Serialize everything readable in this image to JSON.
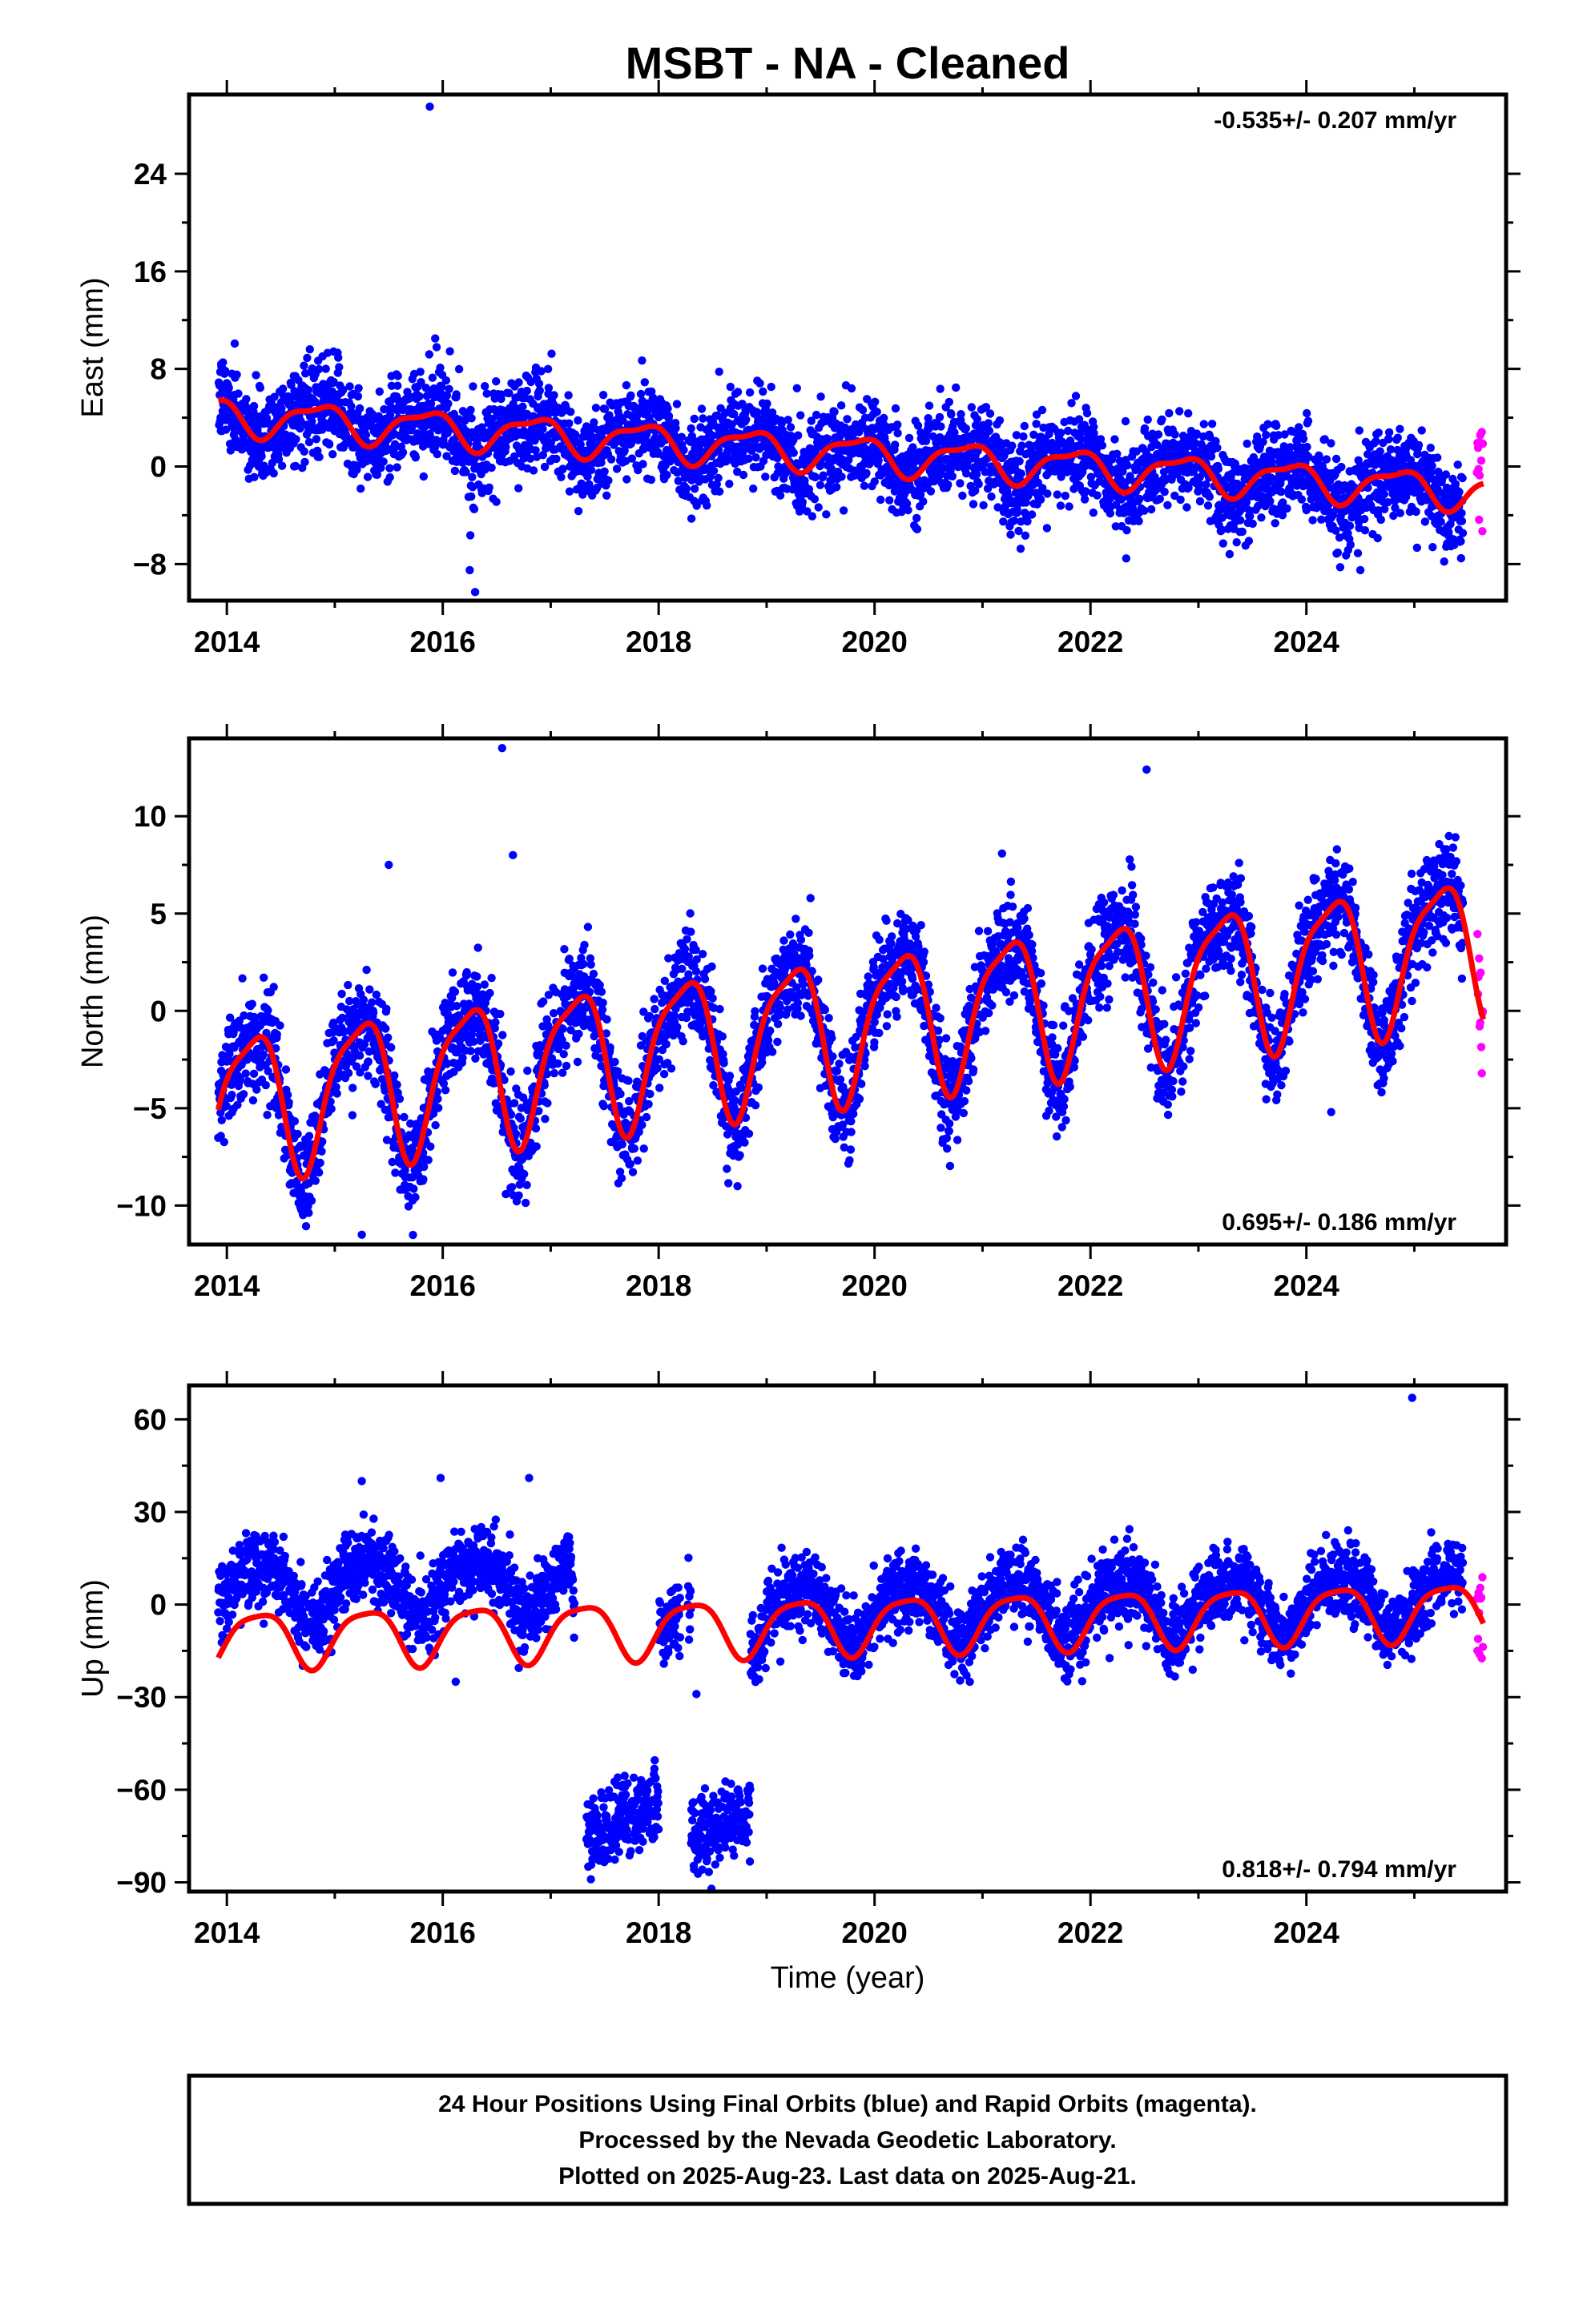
{
  "title": "MSBT  - NA - Cleaned",
  "xlabel": "Time (year)",
  "footer": [
    "24 Hour Positions Using Final Orbits (blue) and Rapid Orbits (magenta).",
    "Processed by the Nevada Geodetic Laboratory.",
    "Plotted on 2025-Aug-23. Last data on 2025-Aug-21."
  ],
  "colors": {
    "final": "#0000ff",
    "rapid": "#ff00ff",
    "model": "#ff0000"
  },
  "chart_data": [
    {
      "type": "scatter",
      "ylabel": "East (mm)",
      "rate": "-0.535+/- 0.207 mm/yr",
      "xlim": [
        2013.65,
        2025.85
      ],
      "ylim": [
        -11,
        30.5
      ],
      "xticks": [
        2014,
        2016,
        2018,
        2020,
        2022,
        2024
      ],
      "yticks": [
        -8,
        0,
        8,
        16,
        24
      ],
      "final_start": 2013.92,
      "final_end": 2025.45,
      "rapid_start": 2025.58,
      "rapid_end": 2025.64,
      "model": {
        "offset": 1.5,
        "trend": -0.535,
        "ref_year": 2019.0,
        "annual_amp": 1.4,
        "annual_phase": 2.6,
        "semiannual_amp": 0.5,
        "semiannual_phase": 1.0,
        "scatter_sd": 1.8
      },
      "outliers": [
        [
          2015.88,
          29.5
        ],
        [
          2015.93,
          10.5
        ],
        [
          2016.25,
          -8.5
        ],
        [
          2016.3,
          -10.3
        ],
        [
          2016.78,
          6.2
        ],
        [
          2024.5,
          -8.5
        ]
      ]
    },
    {
      "type": "scatter",
      "ylabel": "North (mm)",
      "rate": "0.695+/- 0.186 mm/yr",
      "xlim": [
        2013.65,
        2025.85
      ],
      "ylim": [
        -12,
        14
      ],
      "xticks": [
        2014,
        2016,
        2018,
        2020,
        2022,
        2024
      ],
      "yticks": [
        -10,
        -5,
        0,
        5,
        10
      ],
      "final_start": 2013.92,
      "final_end": 2025.45,
      "rapid_start": 2025.58,
      "rapid_end": 2025.64,
      "model": {
        "offset": -1.2,
        "trend": 0.695,
        "ref_year": 2019.0,
        "annual_amp": 3.6,
        "annual_phase": 0.15,
        "semiannual_amp": 0.9,
        "semiannual_phase": 2.4,
        "scatter_sd": 1.3
      },
      "outliers": [
        [
          2016.55,
          13.5
        ],
        [
          2016.65,
          8.0
        ],
        [
          2015.5,
          7.5
        ],
        [
          2022.52,
          12.4
        ],
        [
          2015.25,
          -11.5
        ],
        [
          2024.23,
          -5.2
        ]
      ]
    },
    {
      "type": "scatter",
      "ylabel": "Up (mm)",
      "rate": "0.818+/- 0.794 mm/yr",
      "xlim": [
        2013.65,
        2025.85
      ],
      "ylim": [
        -93,
        71
      ],
      "xticks": [
        2014,
        2016,
        2018,
        2020,
        2022,
        2024
      ],
      "yticks": [
        -90,
        -60,
        -30,
        0,
        30,
        60
      ],
      "final_start": 2013.92,
      "final_end": 2025.45,
      "rapid_start": 2025.58,
      "rapid_end": 2025.64,
      "gaps": [
        [
          2017.22,
          2017.33
        ],
        [
          2018.2,
          2018.27
        ]
      ],
      "clusters": [
        {
          "x": [
            2017.28,
            2018.0
          ],
          "center": -70,
          "slope": 15,
          "sd": 6
        },
        {
          "x": [
            2018.3,
            2018.85
          ],
          "center": -72,
          "slope": 12,
          "sd": 6
        }
      ],
      "model": {
        "offset": -7.0,
        "trend": 0.818,
        "ref_year": 2019.0,
        "annual_amp": 9.0,
        "annual_phase": -0.3,
        "semiannual_amp": 2.0,
        "semiannual_phase": 1.2,
        "scatter_sd": 6.0,
        "data_offset_pre2017": 16.0
      },
      "outliers": [
        [
          2024.98,
          67
        ],
        [
          2015.98,
          41
        ],
        [
          2016.8,
          41
        ],
        [
          2015.25,
          40
        ],
        [
          2016.12,
          -25
        ],
        [
          2018.35,
          -29
        ]
      ]
    }
  ]
}
